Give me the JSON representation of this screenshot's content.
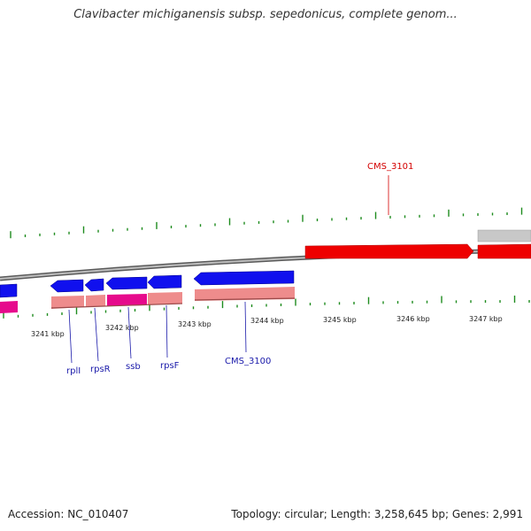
{
  "title": "Clavibacter michiganensis subsp. sepedonicus, complete genom...",
  "footer": {
    "accession": "Accession: NC_010407",
    "topology": "Topology: circular; Length: 3,258,645 bp; Genes: 2,991"
  },
  "colors": {
    "forward_gene": "#ff0000",
    "reverse_gene": "#0000ee",
    "rna": "#e60a8c",
    "cds_pink": "#ee8c8c",
    "backbone": "#808080",
    "tick": "#1e8c1e",
    "label_forward": "#d40000",
    "label_reverse": "#1a1aaa",
    "label_tick": "#222222"
  },
  "ticks": {
    "labels": [
      "3241 kbp",
      "3242 kbp",
      "3243 kbp",
      "3244 kbp",
      "3245 kbp",
      "3246 kbp",
      "3247 kbp"
    ]
  },
  "genes": [
    {
      "name": "rplI",
      "strand": "reverse"
    },
    {
      "name": "rpsR",
      "strand": "reverse"
    },
    {
      "name": "ssb",
      "strand": "reverse"
    },
    {
      "name": "rpsF",
      "strand": "reverse"
    },
    {
      "name": "CMS_3100",
      "strand": "reverse"
    },
    {
      "name": "CMS_3101",
      "strand": "forward"
    }
  ]
}
